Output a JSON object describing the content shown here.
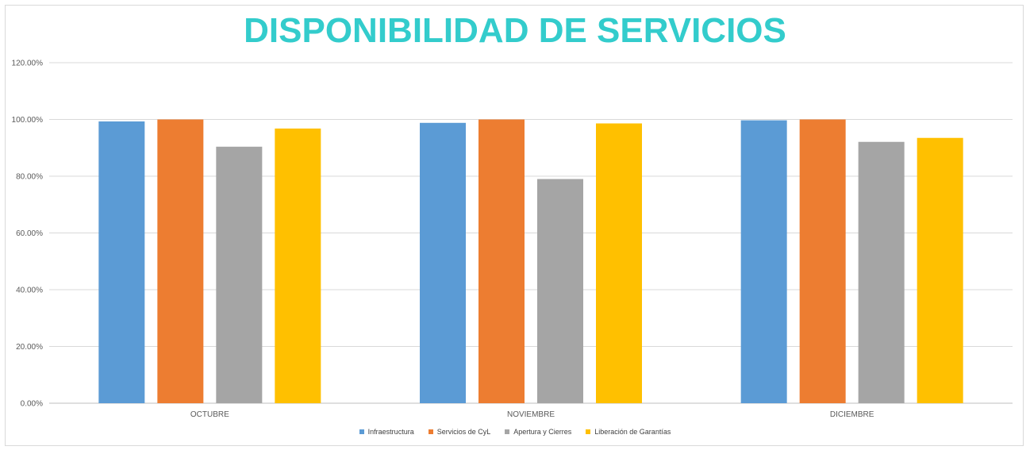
{
  "chart_data": {
    "type": "bar",
    "title": "DISPONIBILIDAD DE SERVICIOS",
    "title_color": "#33CCCC",
    "categories": [
      "OCTUBRE",
      "NOVIEMBRE",
      "DICIEMBRE"
    ],
    "series": [
      {
        "name": "Infraestructura",
        "color": "#5B9BD5",
        "values": [
          99.3,
          98.8,
          99.7
        ]
      },
      {
        "name": "Servicios de CyL",
        "color": "#ED7D31",
        "values": [
          100.0,
          100.0,
          100.0
        ]
      },
      {
        "name": "Apertura y Cierres",
        "color": "#A5A5A5",
        "values": [
          90.4,
          79.0,
          92.1
        ]
      },
      {
        "name": "Liberación de Garantías",
        "color": "#FFC000",
        "values": [
          96.8,
          98.6,
          93.5
        ]
      }
    ],
    "ylim": [
      0,
      120
    ],
    "yticks": [
      "0.00%",
      "20.00%",
      "40.00%",
      "60.00%",
      "80.00%",
      "100.00%",
      "120.00%"
    ],
    "grid": true,
    "legend_position": "bottom",
    "xlabel": "",
    "ylabel": ""
  }
}
